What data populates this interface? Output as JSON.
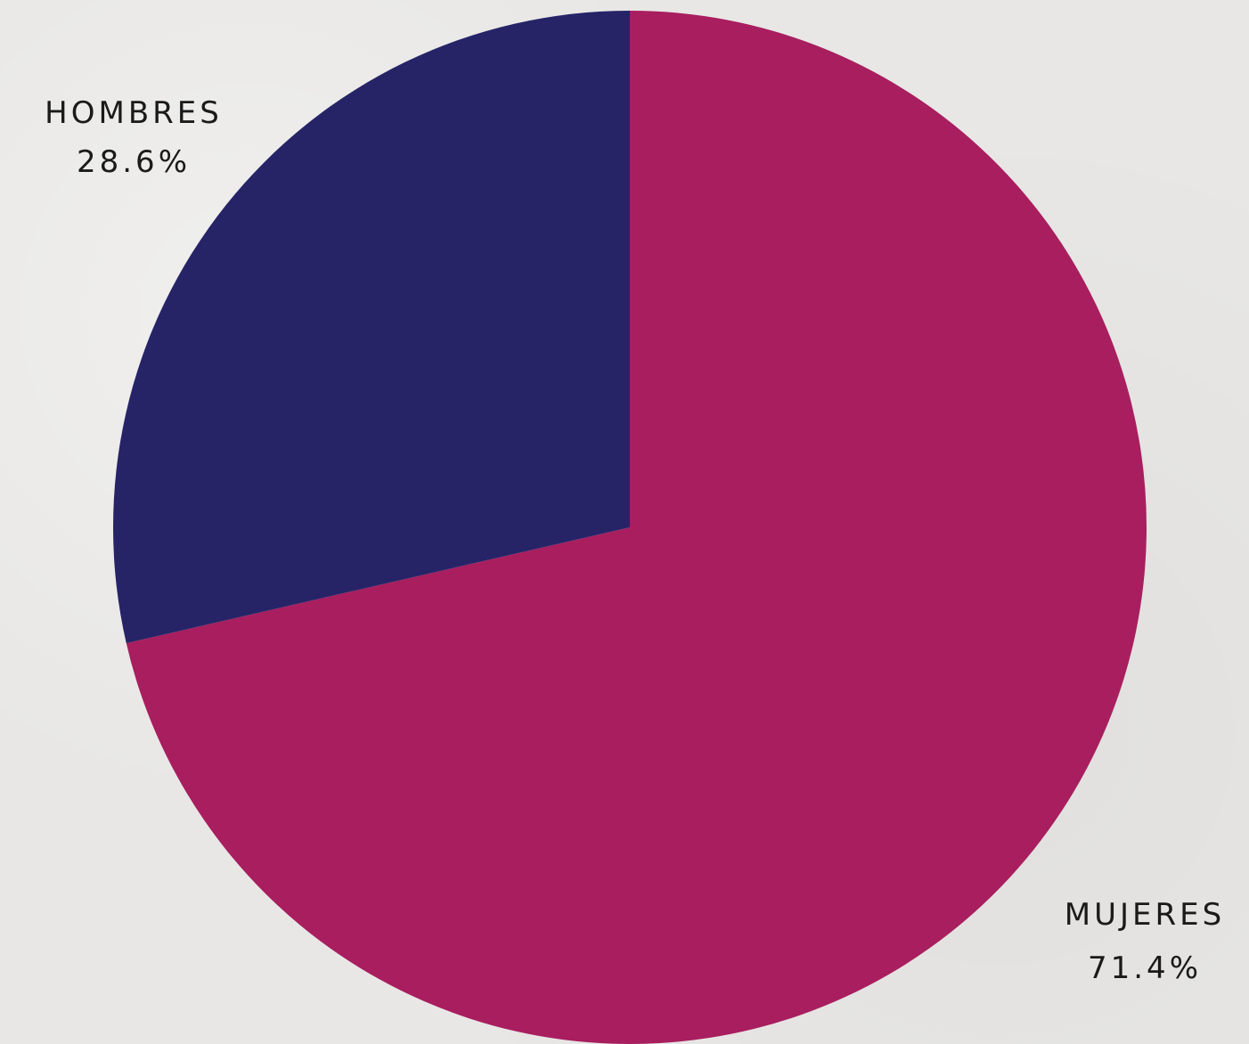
{
  "chart_data": {
    "type": "pie",
    "start_angle_deg": 0,
    "direction": "clockwise",
    "slices": [
      {
        "label": "MUJERES",
        "value": 71.4,
        "value_label": "71.4%",
        "color": "#a81e5f"
      },
      {
        "label": "HOMBRES",
        "value": 28.6,
        "value_label": "28.6%",
        "color": "#262467"
      }
    ]
  }
}
